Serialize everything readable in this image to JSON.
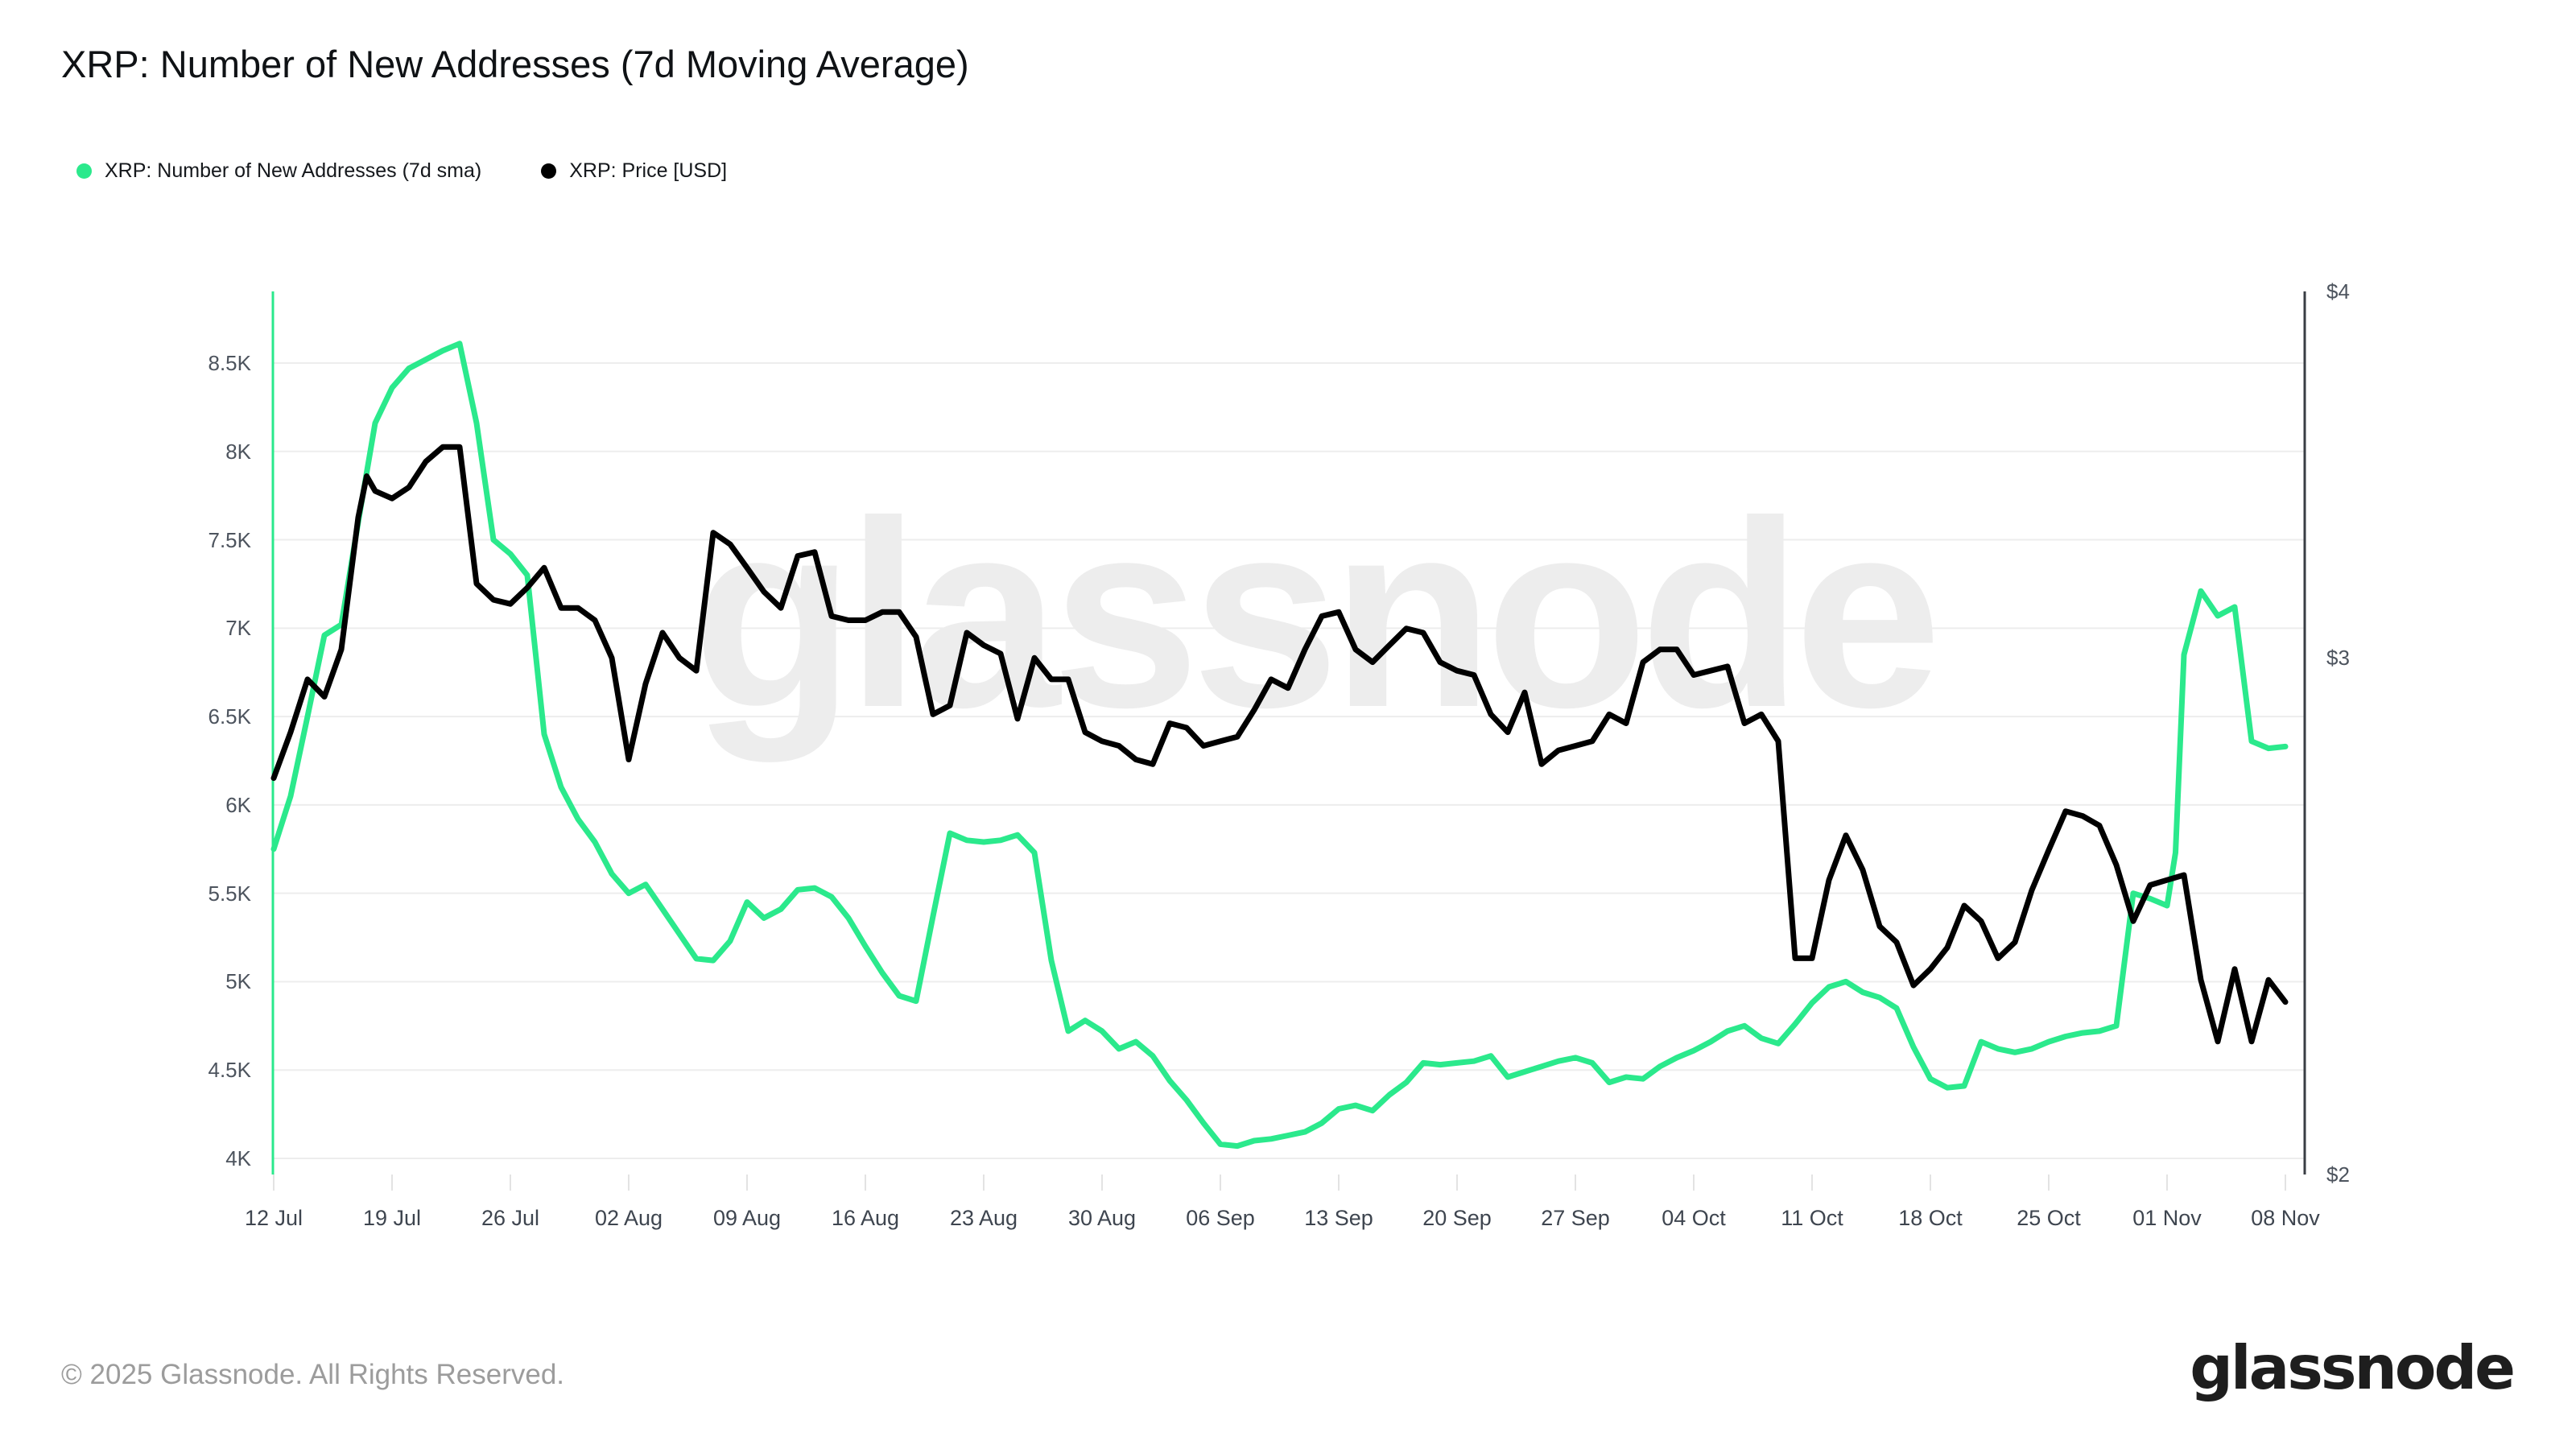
{
  "watermark": {
    "text": "glassnode"
  },
  "legend": [
    {
      "label": "XRP: Number of New Addresses (7d sma)",
      "color": "#2be98c"
    },
    {
      "label": "XRP: Price [USD]",
      "color": "#000000"
    }
  ],
  "footer": {
    "copyright": "© 2025 Glassnode. All Rights Reserved.",
    "brand": "glassnode"
  },
  "chart_data": {
    "type": "line",
    "title": "XRP: Number of New Addresses (7d Moving Average)",
    "grid": "horizontal-only",
    "legend_position": "top-left",
    "x_axis": {
      "unit": "date",
      "tick_interval_days": 7,
      "total_days": 119,
      "tick_labels": [
        "12 Jul",
        "19 Jul",
        "26 Jul",
        "02 Aug",
        "09 Aug",
        "16 Aug",
        "23 Aug",
        "30 Aug",
        "06 Sep",
        "13 Sep",
        "20 Sep",
        "27 Sep",
        "04 Oct",
        "11 Oct",
        "18 Oct",
        "25 Oct",
        "01 Nov",
        "08 Nov"
      ]
    },
    "y_axis_left": {
      "scale": "linear",
      "range": [
        4000,
        8500
      ],
      "tick_labels": [
        "8.5K",
        "8K",
        "7.5K",
        "7K",
        "6.5K",
        "6K",
        "5.5K",
        "5K",
        "4.5K",
        "4K"
      ],
      "tick_values": [
        8500,
        8000,
        7500,
        7000,
        6500,
        6000,
        5500,
        5000,
        4500,
        4000
      ]
    },
    "y_axis_right": {
      "scale": "log",
      "range": [
        2,
        4
      ],
      "tick_labels": [
        "$4",
        "$3",
        "$2"
      ],
      "tick_values": [
        4,
        3,
        2
      ]
    },
    "series": [
      {
        "name": "XRP: Number of New Addresses (7d sma)",
        "color": "#2be98c",
        "axis": "left",
        "unit": "addresses",
        "points": [
          [
            0,
            5750
          ],
          [
            1,
            6050
          ],
          [
            2,
            6500
          ],
          [
            3,
            6960
          ],
          [
            4,
            7020
          ],
          [
            5,
            7600
          ],
          [
            6,
            8160
          ],
          [
            7,
            8360
          ],
          [
            8,
            8470
          ],
          [
            9,
            8520
          ],
          [
            10,
            8570
          ],
          [
            11,
            8610
          ],
          [
            12,
            8160
          ],
          [
            13,
            7500
          ],
          [
            14,
            7420
          ],
          [
            15,
            7300
          ],
          [
            16,
            6400
          ],
          [
            17,
            6100
          ],
          [
            18,
            5920
          ],
          [
            19,
            5790
          ],
          [
            20,
            5610
          ],
          [
            21,
            5500
          ],
          [
            22,
            5550
          ],
          [
            23,
            5410
          ],
          [
            24,
            5270
          ],
          [
            25,
            5130
          ],
          [
            26,
            5120
          ],
          [
            27,
            5230
          ],
          [
            28,
            5450
          ],
          [
            29,
            5360
          ],
          [
            30,
            5410
          ],
          [
            31,
            5520
          ],
          [
            32,
            5530
          ],
          [
            33,
            5480
          ],
          [
            34,
            5360
          ],
          [
            35,
            5200
          ],
          [
            36,
            5050
          ],
          [
            37,
            4920
          ],
          [
            38,
            4890
          ],
          [
            39,
            5370
          ],
          [
            40,
            5840
          ],
          [
            41,
            5800
          ],
          [
            42,
            5790
          ],
          [
            43,
            5800
          ],
          [
            44,
            5830
          ],
          [
            45,
            5730
          ],
          [
            46,
            5120
          ],
          [
            47,
            4720
          ],
          [
            48,
            4780
          ],
          [
            49,
            4720
          ],
          [
            50,
            4620
          ],
          [
            51,
            4660
          ],
          [
            52,
            4580
          ],
          [
            53,
            4440
          ],
          [
            54,
            4330
          ],
          [
            55,
            4200
          ],
          [
            56,
            4080
          ],
          [
            57,
            4070
          ],
          [
            58,
            4100
          ],
          [
            59,
            4110
          ],
          [
            60,
            4130
          ],
          [
            61,
            4150
          ],
          [
            62,
            4200
          ],
          [
            63,
            4280
          ],
          [
            64,
            4300
          ],
          [
            65,
            4270
          ],
          [
            66,
            4360
          ],
          [
            67,
            4430
          ],
          [
            68,
            4540
          ],
          [
            69,
            4530
          ],
          [
            70,
            4540
          ],
          [
            71,
            4550
          ],
          [
            72,
            4580
          ],
          [
            73,
            4460
          ],
          [
            74,
            4490
          ],
          [
            75,
            4520
          ],
          [
            76,
            4550
          ],
          [
            77,
            4570
          ],
          [
            78,
            4540
          ],
          [
            79,
            4430
          ],
          [
            80,
            4460
          ],
          [
            81,
            4450
          ],
          [
            82,
            4520
          ],
          [
            83,
            4570
          ],
          [
            84,
            4610
          ],
          [
            85,
            4660
          ],
          [
            86,
            4720
          ],
          [
            87,
            4750
          ],
          [
            88,
            4680
          ],
          [
            89,
            4650
          ],
          [
            90,
            4760
          ],
          [
            91,
            4880
          ],
          [
            92,
            4970
          ],
          [
            93,
            5000
          ],
          [
            94,
            4940
          ],
          [
            95,
            4910
          ],
          [
            96,
            4850
          ],
          [
            97,
            4630
          ],
          [
            98,
            4450
          ],
          [
            99,
            4400
          ],
          [
            100,
            4410
          ],
          [
            101,
            4660
          ],
          [
            102,
            4620
          ],
          [
            103,
            4600
          ],
          [
            104,
            4620
          ],
          [
            105,
            4660
          ],
          [
            106,
            4690
          ],
          [
            107,
            4710
          ],
          [
            108,
            4720
          ],
          [
            109,
            4750
          ],
          [
            110,
            5500
          ],
          [
            111,
            5470
          ],
          [
            112,
            5430
          ],
          [
            112.5,
            5730
          ],
          [
            113,
            6850
          ],
          [
            114,
            7210
          ],
          [
            115,
            7070
          ],
          [
            116,
            7120
          ],
          [
            117,
            6360
          ],
          [
            118,
            6320
          ],
          [
            119,
            6330
          ]
        ]
      },
      {
        "name": "XRP: Price [USD]",
        "color": "#000000",
        "axis": "right",
        "unit": "USD",
        "points": [
          [
            0,
            2.73
          ],
          [
            1,
            2.83
          ],
          [
            2,
            2.95
          ],
          [
            3,
            2.91
          ],
          [
            4,
            3.02
          ],
          [
            5,
            3.35
          ],
          [
            5.5,
            3.46
          ],
          [
            6,
            3.42
          ],
          [
            7,
            3.4
          ],
          [
            8,
            3.43
          ],
          [
            9,
            3.5
          ],
          [
            10,
            3.54
          ],
          [
            11,
            3.54
          ],
          [
            12,
            3.18
          ],
          [
            13,
            3.14
          ],
          [
            14,
            3.13
          ],
          [
            15,
            3.17
          ],
          [
            16,
            3.22
          ],
          [
            17,
            3.12
          ],
          [
            18,
            3.12
          ],
          [
            19,
            3.09
          ],
          [
            20,
            3.0
          ],
          [
            21,
            2.77
          ],
          [
            22,
            2.94
          ],
          [
            23,
            3.06
          ],
          [
            24,
            3.0
          ],
          [
            25,
            2.97
          ],
          [
            26,
            3.31
          ],
          [
            27,
            3.28
          ],
          [
            28,
            3.22
          ],
          [
            29,
            3.16
          ],
          [
            30,
            3.12
          ],
          [
            31,
            3.25
          ],
          [
            32,
            3.26
          ],
          [
            33,
            3.1
          ],
          [
            34,
            3.09
          ],
          [
            35,
            3.09
          ],
          [
            36,
            3.11
          ],
          [
            37,
            3.11
          ],
          [
            38,
            3.05
          ],
          [
            39,
            2.87
          ],
          [
            40,
            2.89
          ],
          [
            41,
            3.06
          ],
          [
            42,
            3.03
          ],
          [
            43,
            3.01
          ],
          [
            44,
            2.86
          ],
          [
            45,
            3.0
          ],
          [
            46,
            2.95
          ],
          [
            47,
            2.95
          ],
          [
            48,
            2.83
          ],
          [
            49,
            2.81
          ],
          [
            50,
            2.8
          ],
          [
            51,
            2.77
          ],
          [
            52,
            2.76
          ],
          [
            53,
            2.85
          ],
          [
            54,
            2.84
          ],
          [
            55,
            2.8
          ],
          [
            56,
            2.81
          ],
          [
            57,
            2.82
          ],
          [
            58,
            2.88
          ],
          [
            59,
            2.95
          ],
          [
            60,
            2.93
          ],
          [
            61,
            3.02
          ],
          [
            62,
            3.1
          ],
          [
            63,
            3.11
          ],
          [
            64,
            3.02
          ],
          [
            65,
            2.99
          ],
          [
            66,
            3.03
          ],
          [
            67,
            3.07
          ],
          [
            68,
            3.06
          ],
          [
            69,
            2.99
          ],
          [
            70,
            2.97
          ],
          [
            71,
            2.96
          ],
          [
            72,
            2.87
          ],
          [
            73,
            2.83
          ],
          [
            74,
            2.92
          ],
          [
            75,
            2.76
          ],
          [
            76,
            2.79
          ],
          [
            77,
            2.8
          ],
          [
            78,
            2.81
          ],
          [
            79,
            2.87
          ],
          [
            80,
            2.85
          ],
          [
            81,
            2.99
          ],
          [
            82,
            3.02
          ],
          [
            83,
            3.02
          ],
          [
            84,
            2.96
          ],
          [
            85,
            2.97
          ],
          [
            86,
            2.98
          ],
          [
            87,
            2.85
          ],
          [
            88,
            2.87
          ],
          [
            89,
            2.81
          ],
          [
            90,
            2.37
          ],
          [
            91,
            2.37
          ],
          [
            92,
            2.52
          ],
          [
            93,
            2.61
          ],
          [
            94,
            2.54
          ],
          [
            95,
            2.43
          ],
          [
            96,
            2.4
          ],
          [
            97,
            2.32
          ],
          [
            98,
            2.35
          ],
          [
            99,
            2.39
          ],
          [
            100,
            2.47
          ],
          [
            101,
            2.44
          ],
          [
            102,
            2.37
          ],
          [
            103,
            2.4
          ],
          [
            104,
            2.5
          ],
          [
            105,
            2.58
          ],
          [
            106,
            2.66
          ],
          [
            107,
            2.65
          ],
          [
            108,
            2.63
          ],
          [
            109,
            2.55
          ],
          [
            110,
            2.44
          ],
          [
            111,
            2.51
          ],
          [
            112,
            2.52
          ],
          [
            113,
            2.53
          ],
          [
            114,
            2.33
          ],
          [
            115,
            2.22
          ],
          [
            116,
            2.35
          ],
          [
            117,
            2.22
          ],
          [
            118,
            2.33
          ],
          [
            119,
            2.29
          ]
        ]
      }
    ]
  }
}
